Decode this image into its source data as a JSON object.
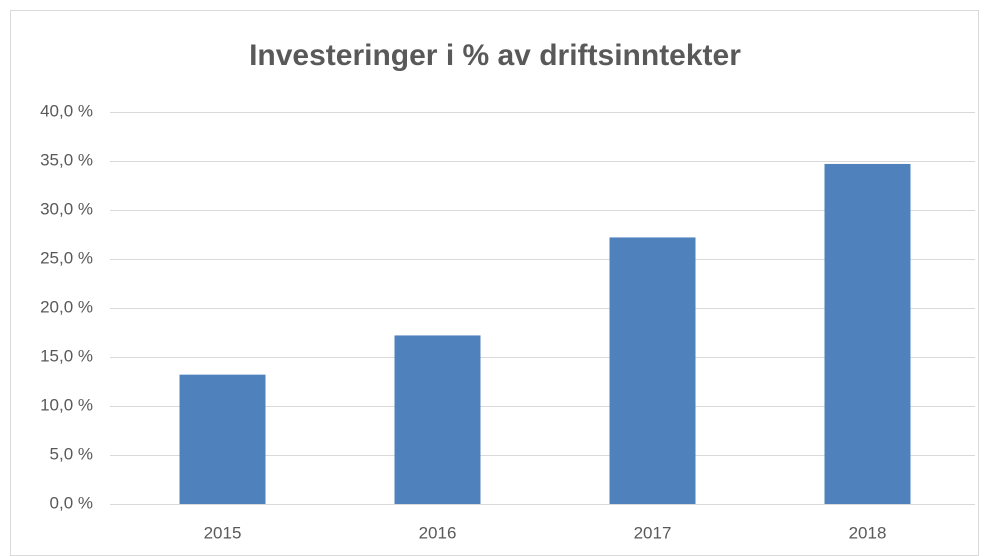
{
  "chart_data": {
    "type": "bar",
    "title": "Investeringer i % av driftsinntekter",
    "categories": [
      "2015",
      "2016",
      "2017",
      "2018"
    ],
    "values": [
      13.2,
      17.2,
      27.2,
      34.7
    ],
    "color": "#4f81bd",
    "ylim": [
      0,
      40
    ],
    "yticks": [
      {
        "value": 0,
        "label": "0,0 %"
      },
      {
        "value": 5,
        "label": "5,0 %"
      },
      {
        "value": 10,
        "label": "10,0 %"
      },
      {
        "value": 15,
        "label": "15,0 %"
      },
      {
        "value": 20,
        "label": "20,0 %"
      },
      {
        "value": 25,
        "label": "25,0 %"
      },
      {
        "value": 30,
        "label": "30,0 %"
      },
      {
        "value": 35,
        "label": "35,0 %"
      },
      {
        "value": 40,
        "label": "40,0 %"
      }
    ],
    "grid": true
  }
}
